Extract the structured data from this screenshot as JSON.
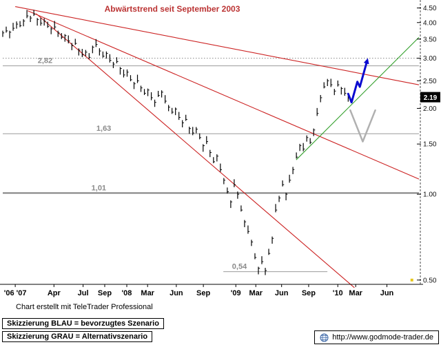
{
  "chart_data": {
    "type": "candlestick",
    "title": "Abwärtstrend seit September 2003",
    "title_color": "#bb3333",
    "downtrend_color": "#cc2222",
    "y_axis": {
      "scale": "log",
      "top": 4.72,
      "bottom": 0.483,
      "ticks": [
        4.5,
        4.0,
        3.5,
        3.0,
        2.5,
        2.0,
        1.5,
        1.0,
        0.5
      ],
      "labels": [
        "4.50",
        "4.00",
        "3.50",
        "3.00",
        "2.50",
        "2.00",
        "1.50",
        "1.00",
        "0.50"
      ],
      "current": {
        "label": "2.19",
        "value": 2.19
      }
    },
    "x_axis": {
      "ticks": [
        {
          "f": 0.03,
          "label": "'06 '07"
        },
        {
          "f": 0.123,
          "label": "Apr"
        },
        {
          "f": 0.193,
          "label": "Jul"
        },
        {
          "f": 0.245,
          "label": "Sep"
        },
        {
          "f": 0.298,
          "label": "'08"
        },
        {
          "f": 0.348,
          "label": "Mar"
        },
        {
          "f": 0.417,
          "label": "Jun"
        },
        {
          "f": 0.482,
          "label": "Sep"
        },
        {
          "f": 0.56,
          "label": "'09"
        },
        {
          "f": 0.608,
          "label": "Mar"
        },
        {
          "f": 0.67,
          "label": "Jun"
        },
        {
          "f": 0.735,
          "label": "Sep"
        },
        {
          "f": 0.805,
          "label": "'10"
        },
        {
          "f": 0.848,
          "label": "Mar"
        },
        {
          "f": 0.923,
          "label": "Jun"
        }
      ]
    },
    "gridlines": [
      3.0
    ],
    "levels": [
      {
        "value": 2.82,
        "label": "2,82",
        "f1": 0.0,
        "f2": 1.0,
        "label_f": 0.084,
        "color": "#9a9a9a",
        "width": 1
      },
      {
        "value": 1.63,
        "label": "1,63",
        "f1": 0.0,
        "f2": 1.0,
        "label_f": 0.225,
        "color": "#9a9a9a",
        "width": 1
      },
      {
        "value": 1.01,
        "label": "1,01",
        "f1": 0.0,
        "f2": 1.0,
        "label_f": 0.213,
        "color": "#7d7d7d",
        "width": 2
      },
      {
        "value": 0.535,
        "label": "0,54",
        "f1": 0.53,
        "f2": 0.78,
        "label_f": 0.551,
        "color": "#9a9a9a",
        "width": 1
      }
    ],
    "downtrend_lines": [
      {
        "f1": 0.03,
        "p1": 4.55,
        "f2": 1.0,
        "p2": 2.42
      },
      {
        "f1": 0.06,
        "p1": 4.4,
        "f2": 1.0,
        "p2": 1.13
      },
      {
        "f1": 0.08,
        "p1": 4.3,
        "f2": 0.845,
        "p2": 0.47
      }
    ],
    "uptrend_line": {
      "f1": 0.705,
      "p1": 1.32,
      "f2": 1.0,
      "p2": 3.55,
      "color": "#33a02c"
    },
    "scenario_blue": {
      "label": "bevorzugtes Szenario",
      "color": "#0a0ad0",
      "points": [
        [
          0.83,
          2.25
        ],
        [
          0.838,
          2.1
        ],
        [
          0.852,
          2.48
        ],
        [
          0.858,
          2.38
        ],
        [
          0.875,
          2.92
        ]
      ]
    },
    "scenario_gray": {
      "label": "Alternativszenario",
      "color": "#b0b0b0",
      "points": [
        [
          0.835,
          1.97
        ],
        [
          0.865,
          1.53
        ],
        [
          0.895,
          1.97
        ]
      ]
    },
    "bars": {
      "color": "#000000",
      "f_start": 0.0,
      "f_step": 0.0083,
      "closes": [
        3.68,
        3.74,
        3.7,
        3.82,
        3.95,
        3.9,
        4.05,
        4.22,
        4.15,
        4.28,
        4.1,
        3.98,
        4.05,
        3.88,
        3.8,
        3.86,
        3.68,
        3.55,
        3.6,
        3.45,
        3.32,
        3.38,
        3.2,
        3.08,
        3.15,
        3.02,
        3.28,
        3.35,
        3.18,
        3.05,
        3.12,
        2.95,
        2.86,
        2.92,
        2.76,
        2.62,
        2.68,
        2.52,
        2.44,
        2.5,
        2.36,
        2.26,
        2.32,
        2.18,
        2.1,
        2.22,
        2.28,
        2.12,
        2.02,
        1.94,
        1.99,
        1.86,
        1.78,
        1.83,
        1.7,
        1.64,
        1.69,
        1.58,
        1.48,
        1.53,
        1.4,
        1.3,
        1.36,
        1.22,
        1.12,
        1.02,
        0.94,
        1.08,
        1.0,
        0.88,
        0.8,
        0.74,
        0.68,
        0.6,
        0.55,
        0.58,
        0.54,
        0.62,
        0.7,
        0.88,
        0.97,
        1.08,
        1.0,
        1.12,
        1.22,
        1.35,
        1.48,
        1.44,
        1.58,
        1.52,
        1.68,
        1.92,
        2.18,
        2.38,
        2.5,
        2.42,
        2.3,
        2.42,
        2.35,
        2.26,
        2.19
      ],
      "spread_up": [
        0.018,
        0.035,
        0.012,
        0.045,
        0.022,
        0.038,
        0.015,
        0.05
      ],
      "spread_down": [
        0.032,
        0.014,
        0.048,
        0.02,
        0.036,
        0.012,
        0.042,
        0.018
      ]
    },
    "marker": {
      "f": 0.983,
      "p": 0.5,
      "color": "#e6c619"
    }
  },
  "footer": {
    "credit": "Chart erstellt mit TeleTrader Professional",
    "legend_blue": "Skizzierung BLAU = bevorzugtes Szenario",
    "legend_gray": "Skizzierung GRAU = Alternativszenario",
    "url": "http://www.godmode-trader.de"
  }
}
